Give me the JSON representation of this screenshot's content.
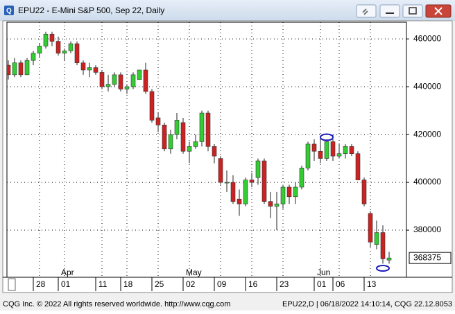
{
  "window": {
    "title": "EPU22 - E-Mini S&P 500, Sep 22, Daily"
  },
  "footer": {
    "left": "CQG Inc. © 2022 All rights reserved worldwide. http://www.cqg.com",
    "right": "EPU22,D | 06/18/2022 14:10:14, CQG 22.12.8053"
  },
  "chart_data": {
    "type": "candlestick",
    "up_color": "#33cc33",
    "down_color": "#cc2222",
    "grid": true,
    "categories": [
      null,
      null,
      null,
      null,
      null,
      "28",
      null,
      null,
      null,
      "01",
      null,
      null,
      null,
      null,
      null,
      "11",
      null,
      null,
      null,
      "18",
      null,
      null,
      null,
      null,
      "25",
      null,
      null,
      null,
      null,
      "02",
      null,
      null,
      null,
      null,
      "09",
      null,
      null,
      null,
      null,
      "16",
      null,
      null,
      null,
      null,
      "23",
      null,
      null,
      null,
      null,
      null,
      "01",
      null,
      null,
      "06",
      null,
      null,
      null,
      null,
      "13",
      null,
      null,
      null
    ],
    "months": [
      null,
      null,
      null,
      null,
      null,
      null,
      null,
      null,
      null,
      "Apr",
      null,
      null,
      null,
      null,
      null,
      null,
      null,
      null,
      null,
      null,
      null,
      null,
      null,
      null,
      null,
      null,
      null,
      null,
      null,
      "May",
      null,
      null,
      null,
      null,
      null,
      null,
      null,
      null,
      null,
      null,
      null,
      null,
      null,
      null,
      null,
      null,
      null,
      null,
      null,
      null,
      "Jun",
      null,
      null,
      null,
      null,
      null,
      null,
      null,
      null,
      null,
      null,
      null
    ],
    "open": [
      449000,
      445000,
      450000,
      445000,
      451000,
      454000,
      457000,
      462000,
      459000,
      454000,
      455000,
      458000,
      450000,
      447000,
      448000,
      446000,
      440000,
      441000,
      445000,
      439000,
      440000,
      443000,
      447000,
      438000,
      427000,
      424000,
      414000,
      420000,
      425000,
      413000,
      415000,
      417000,
      429000,
      415000,
      410000,
      400000,
      400000,
      393000,
      391000,
      401000,
      402000,
      409000,
      392000,
      390000,
      391000,
      398000,
      394000,
      398000,
      406000,
      416000,
      413000,
      410000,
      417000,
      411000,
      412000,
      415000,
      412000,
      401000,
      387000,
      374000,
      379000,
      367500
    ],
    "high": [
      451000,
      452000,
      451000,
      452000,
      455000,
      458000,
      463000,
      463000,
      461000,
      456000,
      459000,
      459000,
      451000,
      450000,
      449000,
      447000,
      445000,
      446000,
      446000,
      441000,
      446000,
      447000,
      450000,
      439000,
      429000,
      425000,
      422000,
      429000,
      427000,
      417000,
      420000,
      430000,
      430000,
      416000,
      411000,
      405000,
      403000,
      397000,
      402000,
      404000,
      410000,
      410000,
      396000,
      396000,
      399000,
      399000,
      400000,
      407000,
      417000,
      418000,
      419000,
      418000,
      420000,
      416000,
      416000,
      416000,
      413000,
      402000,
      388000,
      384000,
      382000,
      371000
    ],
    "low": [
      443000,
      444000,
      444000,
      445000,
      449000,
      452000,
      456000,
      457000,
      453000,
      451000,
      454000,
      449000,
      445000,
      444000,
      445000,
      439000,
      438000,
      440000,
      438000,
      437000,
      439000,
      443000,
      437000,
      425000,
      421000,
      413000,
      412000,
      418000,
      412000,
      408000,
      414000,
      415000,
      413000,
      408000,
      399000,
      396000,
      391000,
      386000,
      390000,
      398000,
      399000,
      391000,
      385000,
      380000,
      389000,
      391000,
      391000,
      397000,
      405000,
      409000,
      408000,
      409000,
      409000,
      410000,
      410000,
      411000,
      401000,
      390000,
      373000,
      372000,
      366000,
      366000
    ],
    "close": [
      445000,
      450000,
      445000,
      451000,
      454000,
      457000,
      462000,
      459000,
      454000,
      455000,
      458000,
      450000,
      447000,
      448000,
      446000,
      440000,
      441000,
      445000,
      439000,
      440000,
      445000,
      447000,
      438000,
      426000,
      424000,
      414000,
      420000,
      426000,
      413000,
      415000,
      417000,
      429000,
      415000,
      411000,
      400000,
      400000,
      392000,
      391000,
      401000,
      400000,
      409000,
      392000,
      390000,
      391000,
      398000,
      394000,
      398000,
      406000,
      416000,
      413000,
      410000,
      417000,
      411000,
      412000,
      415000,
      412000,
      401000,
      391000,
      375000,
      379000,
      368000,
      368375
    ],
    "ylim": [
      360300,
      467000
    ],
    "yticks": [
      380000,
      400000,
      420000,
      440000,
      460000
    ]
  }
}
